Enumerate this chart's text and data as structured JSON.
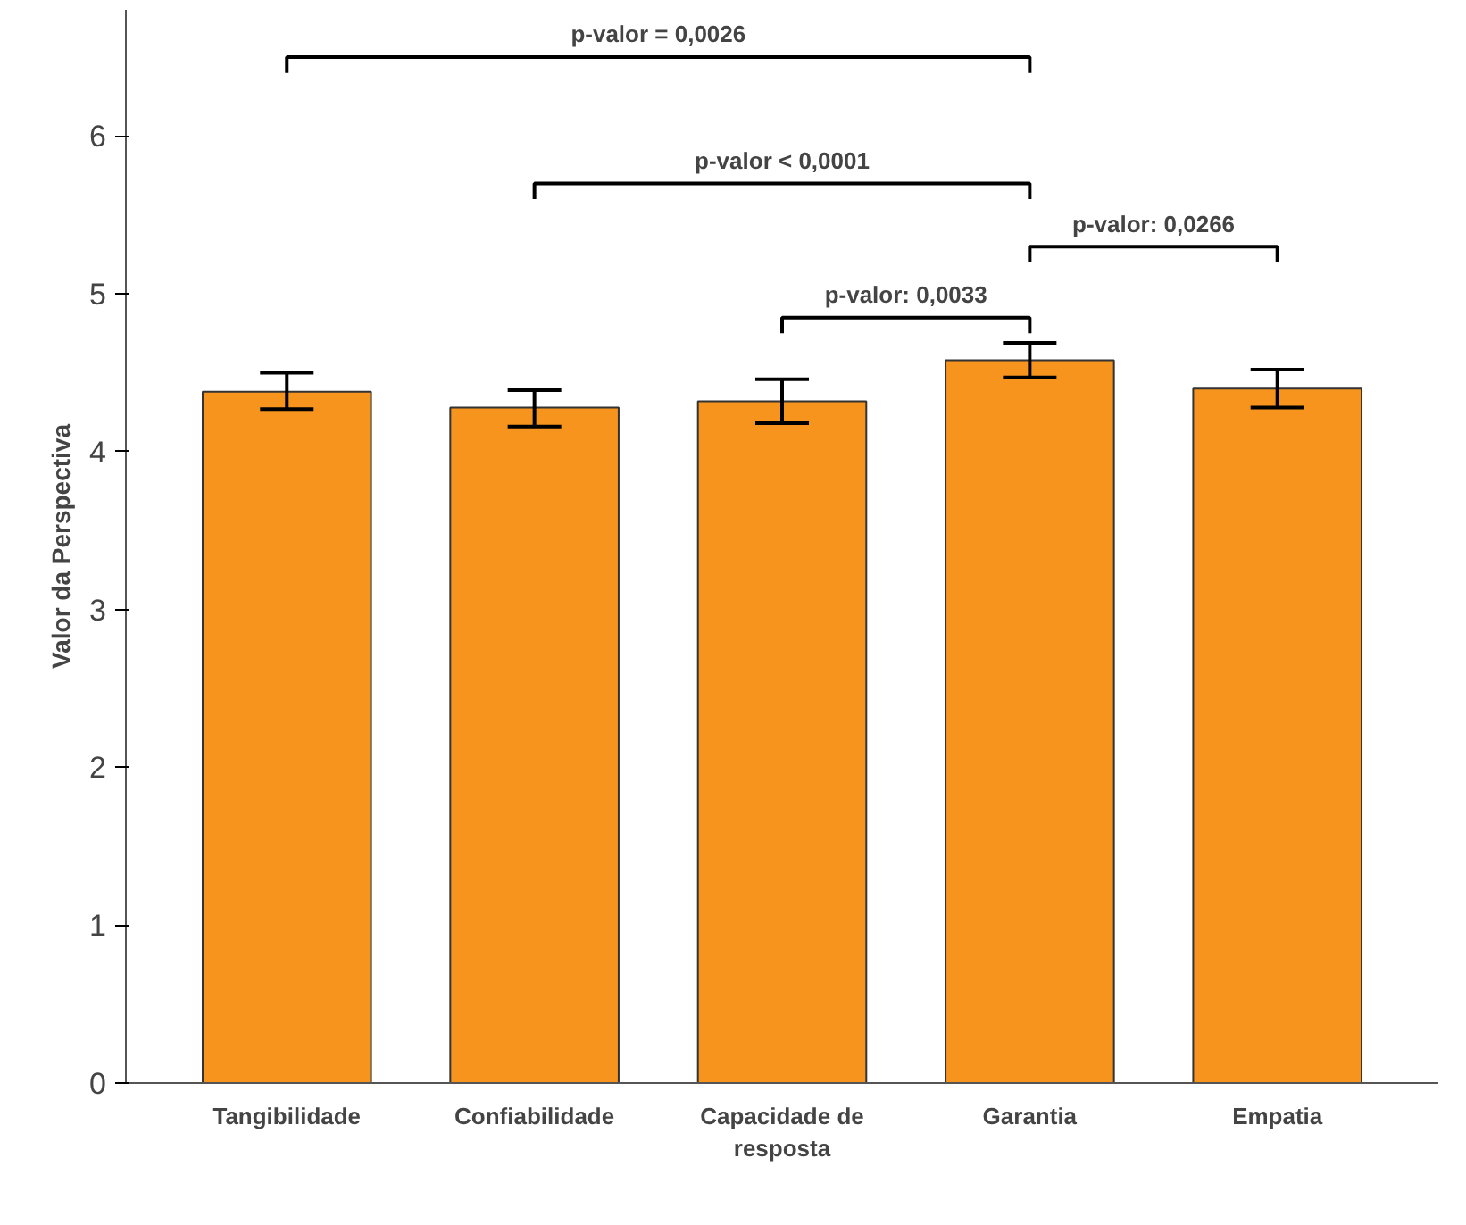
{
  "chart_data": {
    "type": "bar",
    "ylabel": "Valor da Perspectiva",
    "categories": [
      "Tangibilidade",
      "Confiabilidade",
      "Capacidade de resposta",
      "Garantia",
      "Empatia"
    ],
    "values": [
      4.38,
      4.28,
      4.32,
      4.58,
      4.4
    ],
    "errors": [
      [
        4.27,
        4.5
      ],
      [
        4.16,
        4.39
      ],
      [
        4.18,
        4.46
      ],
      [
        4.47,
        4.69
      ],
      [
        4.28,
        4.52
      ]
    ],
    "color": "#f7941d",
    "ylim": [
      0,
      6.8
    ],
    "yticks": [
      0,
      1,
      2,
      3,
      4,
      5,
      6
    ],
    "grid": false,
    "annotations": [
      "p-valor = 0,0026",
      "p-valor < 0,0001",
      "p-valor: 0,0266",
      "p-valor: 0,0033"
    ]
  }
}
